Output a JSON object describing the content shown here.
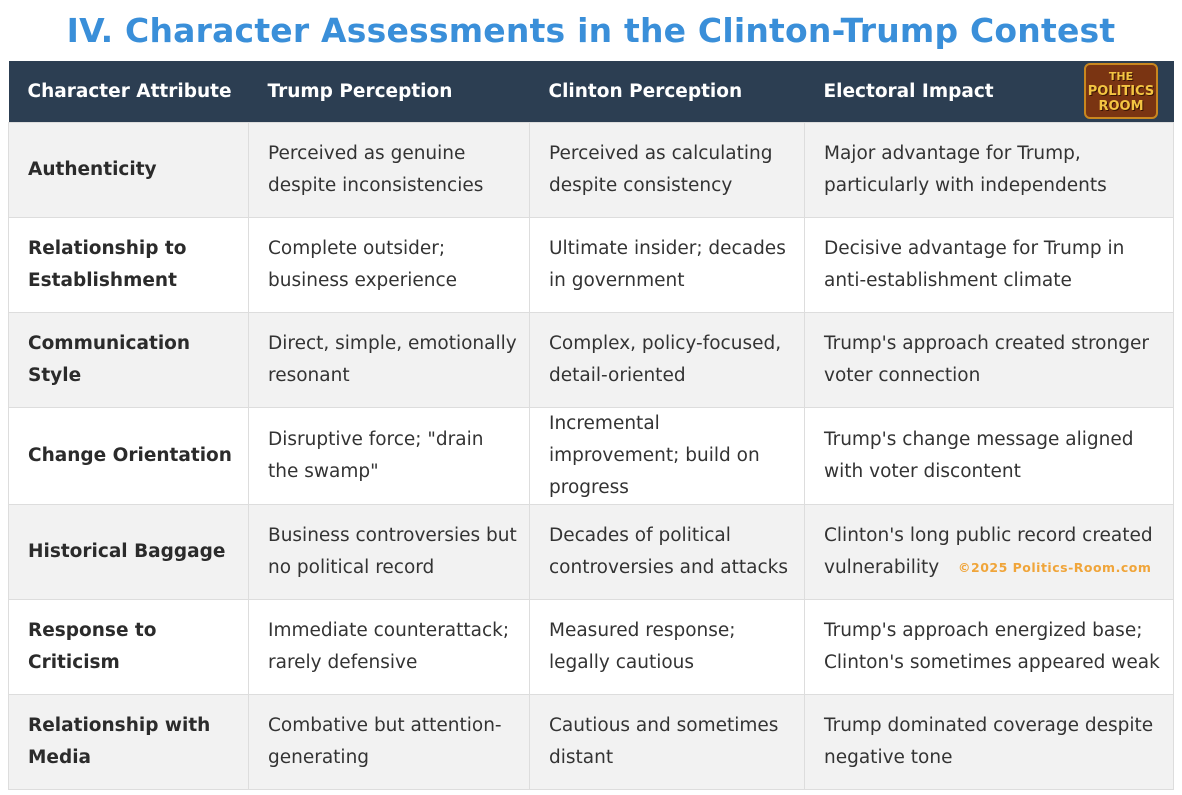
{
  "title": "IV. Character Assessments in the Clinton-Trump Contest",
  "table": {
    "headers": [
      "Character Attribute",
      "Trump Perception",
      "Clinton Perception",
      "Electoral Impact"
    ],
    "rows": [
      [
        "Authenticity",
        "Perceived as genuine despite inconsistencies",
        "Perceived as calculating despite consistency",
        "Major advantage for Trump, particularly with independents"
      ],
      [
        "Relationship to Establishment",
        "Complete outsider; business experience",
        "Ultimate insider; decades in government",
        "Decisive advantage for Trump in anti-establishment climate"
      ],
      [
        "Communication Style",
        "Direct, simple, emotionally resonant",
        "Complex, policy-focused, detail-oriented",
        "Trump's approach created stronger voter connection"
      ],
      [
        "Change Orientation",
        "Disruptive force; \"drain the swamp\"",
        "Incremental improvement; build on progress",
        "Trump's change message aligned with voter discontent"
      ],
      [
        "Historical Baggage",
        "Business controversies but no political record",
        "Decades of political controversies and attacks",
        "Clinton's long public record created vulnerability"
      ],
      [
        "Response to Criticism",
        "Immediate counterattack; rarely defensive",
        "Measured response; legally cautious",
        "Trump's approach energized base; Clinton's sometimes appeared weak"
      ],
      [
        "Relationship with Media",
        "Combative but attention-generating",
        "Cautious and sometimes distant",
        "Trump dominated coverage despite negative tone"
      ]
    ]
  },
  "logo": {
    "line1": "THE",
    "line2": "POLITICS",
    "line3": "ROOM"
  },
  "watermark": "©2025 Politics-Room.com",
  "colors": {
    "title": "#3a8fd9",
    "header_bg": "#2c3e52",
    "row_alt": "#f2f2f2",
    "watermark": "#f0a53a"
  }
}
